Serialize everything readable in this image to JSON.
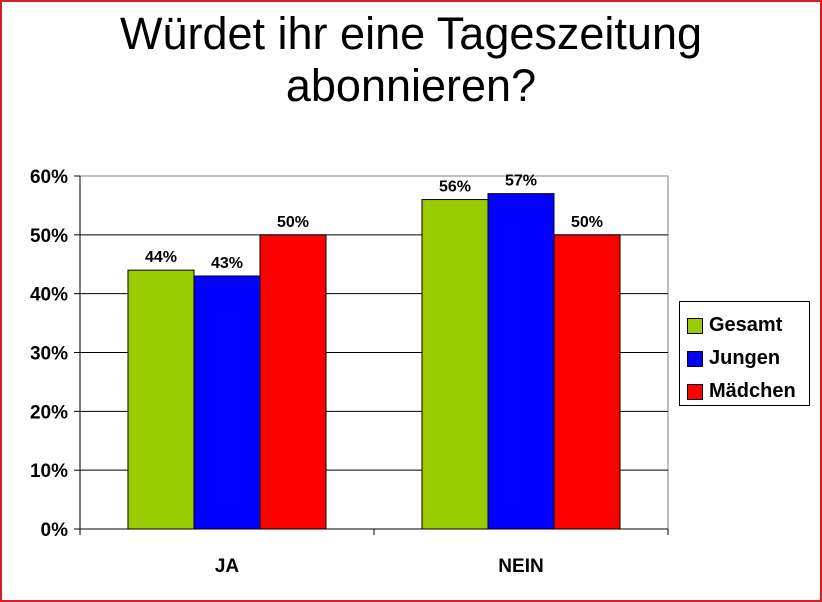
{
  "title_lines": [
    "Würdet ihr eine Tageszeitung",
    "abonnieren?"
  ],
  "chart_data": {
    "type": "bar",
    "categories": [
      "JA",
      "NEIN"
    ],
    "series": [
      {
        "name": "Gesamt",
        "color": "#99cc00",
        "values": [
          44,
          56
        ],
        "labels": [
          "44%",
          "56%"
        ]
      },
      {
        "name": "Jungen",
        "color": "#0000ff",
        "values": [
          43,
          57
        ],
        "labels": [
          "43%",
          "57%"
        ]
      },
      {
        "name": "Mädchen",
        "color": "#ff0000",
        "values": [
          50,
          50
        ],
        "labels": [
          "50%",
          "50%"
        ]
      }
    ],
    "ylim": [
      0,
      60
    ],
    "yticks": [
      "0%",
      "10%",
      "20%",
      "30%",
      "40%",
      "50%",
      "60%"
    ],
    "grid": true,
    "legend_position": "right"
  }
}
